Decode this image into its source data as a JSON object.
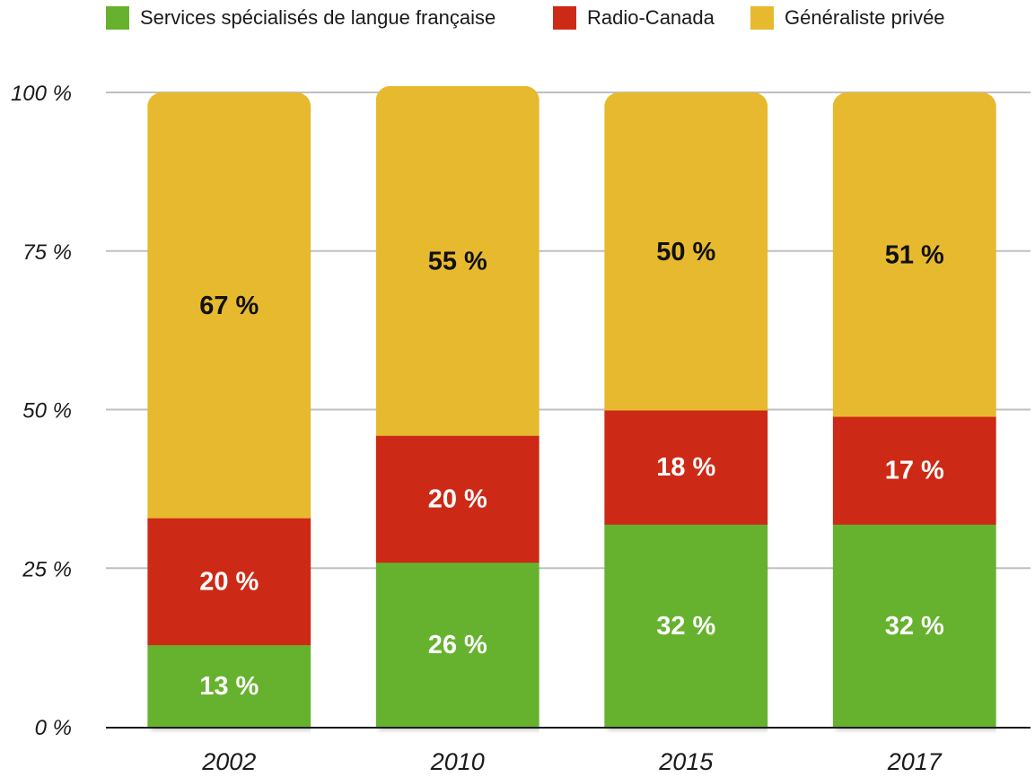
{
  "chart_data": {
    "type": "bar",
    "stacked": true,
    "categories": [
      "2002",
      "2010",
      "2015",
      "2017"
    ],
    "series": [
      {
        "name": "Services spécialisés de langue française",
        "color": "#66b22e",
        "label_color": "#ffffff",
        "values": [
          13,
          26,
          32,
          32
        ],
        "labels": [
          "13 %",
          "26 %",
          "32 %",
          "32 %"
        ]
      },
      {
        "name": "Radio-Canada",
        "color": "#cc2a16",
        "label_color": "#ffffff",
        "values": [
          20,
          20,
          18,
          17
        ],
        "labels": [
          "20 %",
          "20 %",
          "18 %",
          "17 %"
        ]
      },
      {
        "name": "Généraliste privée",
        "color": "#e7b92f",
        "label_color": "#111111",
        "values": [
          67,
          55,
          50,
          51
        ],
        "labels": [
          "67 %",
          "55 %",
          "50 %",
          "51 %"
        ]
      }
    ],
    "ylim": [
      0,
      100
    ],
    "yticks": [
      0,
      25,
      50,
      75,
      100
    ],
    "ytick_labels": [
      "0 %",
      "25 %",
      "50 %",
      "75 %",
      "100 %"
    ],
    "grid": true,
    "legend_position": "top",
    "xlabel": "",
    "ylabel": "",
    "title": ""
  }
}
